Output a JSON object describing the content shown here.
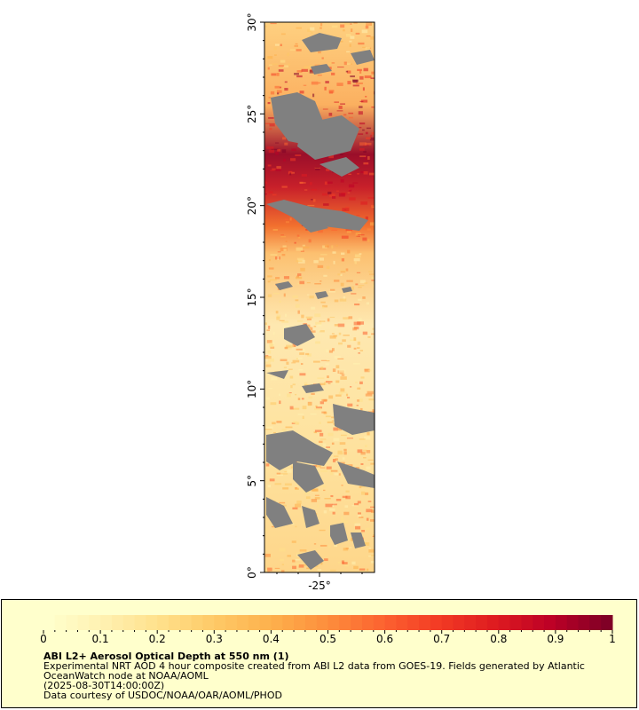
{
  "map": {
    "y_ticks": [
      "0°",
      "5°",
      "10°",
      "15°",
      "20°",
      "25°",
      "30°"
    ],
    "x_ticks": [
      "-25°"
    ],
    "lat_range": [
      0,
      30
    ],
    "lon_tick_value": -25,
    "missing_color": "#808080"
  },
  "colorbar": {
    "ticks": [
      "0",
      "0.1",
      "0.2",
      "0.3",
      "0.4",
      "0.5",
      "0.6",
      "0.7",
      "0.8",
      "0.9",
      "1"
    ],
    "range": [
      0,
      1
    ],
    "colors": [
      "#ffffcc",
      "#fff0b0",
      "#ffe08a",
      "#fec966",
      "#fdb04c",
      "#fd8d3c",
      "#fc6230",
      "#f23a24",
      "#de1b20",
      "#bd0026",
      "#800026"
    ]
  },
  "legend": {
    "title": "ABI L2+ Aerosol Optical Depth at 550 nm (1)",
    "line1": "Experimental NRT AOD 4 hour composite created from ABI L2 data from GOES-19. Fields generated by Atlantic",
    "line2": "OceanWatch node at NOAA/AOML",
    "line3": "(2025-08-30T14:00:00Z)",
    "line4": "Data courtesy of USDOC/NOAA/OAR/AOML/PHOD"
  }
}
